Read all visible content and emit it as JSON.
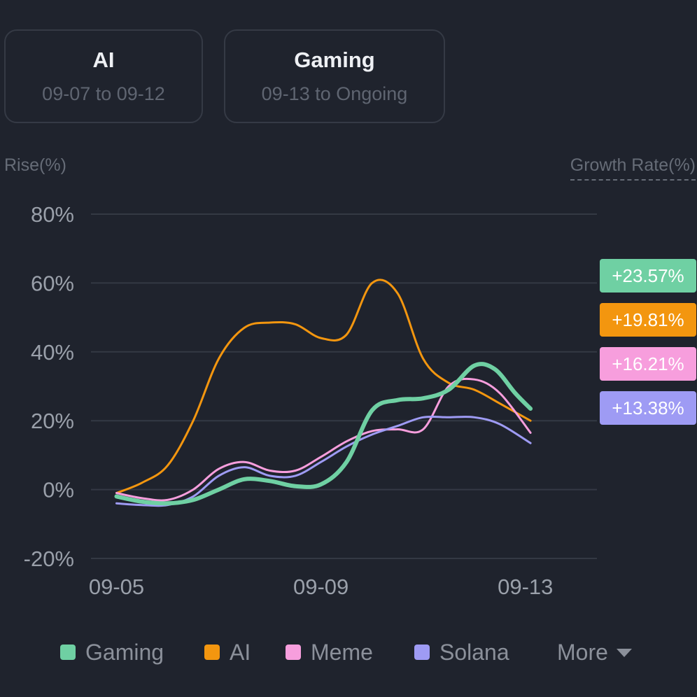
{
  "cards": [
    {
      "title": "AI",
      "range": "09-07 to 09-12"
    },
    {
      "title": "Gaming",
      "range": "09-13 to Ongoing"
    }
  ],
  "axis_left_title": "Rise(%)",
  "axis_right_title": "Growth Rate(%)",
  "colors": {
    "Gaming": "#6fd0a3",
    "AI": "#f3960f",
    "Meme": "#f79edd",
    "Solana": "#9e9bf4",
    "grid": "#343944",
    "tick": "#9aa0aa"
  },
  "badges": [
    {
      "series": "Gaming",
      "text": "+23.57%"
    },
    {
      "series": "AI",
      "text": "+19.81%"
    },
    {
      "series": "Meme",
      "text": "+16.21%"
    },
    {
      "series": "Solana",
      "text": "+13.38%"
    }
  ],
  "legend": {
    "items": [
      "Gaming",
      "AI",
      "Meme",
      "Solana"
    ],
    "more_label": "More"
  },
  "chart_data": {
    "type": "line",
    "title": "",
    "xlabel": "",
    "ylabel": "Rise(%)",
    "y2label": "Growth Rate(%)",
    "x_ticks": [
      {
        "label": "09-05",
        "x": 0
      },
      {
        "label": "09-09",
        "x": 4
      },
      {
        "label": "09-13",
        "x": 8
      }
    ],
    "y_ticks": [
      {
        "label": "80%",
        "value": 80
      },
      {
        "label": "60%",
        "value": 60
      },
      {
        "label": "40%",
        "value": 40
      },
      {
        "label": "20%",
        "value": 20
      },
      {
        "label": "0%",
        "value": 0
      },
      {
        "label": "-20%",
        "value": -20
      }
    ],
    "xlim": [
      -0.5,
      9.4
    ],
    "ylim": [
      -20,
      80
    ],
    "series": [
      {
        "name": "Gaming",
        "width": 6,
        "points": [
          [
            0,
            -2
          ],
          [
            0.5,
            -3.5
          ],
          [
            1,
            -4
          ],
          [
            1.5,
            -3
          ],
          [
            2,
            0
          ],
          [
            2.5,
            3
          ],
          [
            3,
            2.5
          ],
          [
            3.5,
            1
          ],
          [
            4,
            1.5
          ],
          [
            4.5,
            8
          ],
          [
            5,
            23
          ],
          [
            5.5,
            26
          ],
          [
            6,
            26.5
          ],
          [
            6.5,
            29
          ],
          [
            7,
            36
          ],
          [
            7.4,
            35
          ],
          [
            7.8,
            28
          ],
          [
            8.1,
            23.5
          ]
        ]
      },
      {
        "name": "AI",
        "width": 3,
        "points": [
          [
            0,
            -1
          ],
          [
            0.5,
            2
          ],
          [
            1,
            7
          ],
          [
            1.5,
            20
          ],
          [
            2,
            38
          ],
          [
            2.5,
            47
          ],
          [
            3,
            48.5
          ],
          [
            3.5,
            48
          ],
          [
            4,
            44
          ],
          [
            4.5,
            45
          ],
          [
            5,
            60
          ],
          [
            5.5,
            57
          ],
          [
            6,
            38
          ],
          [
            6.5,
            31
          ],
          [
            7,
            29
          ],
          [
            7.5,
            25
          ],
          [
            8.1,
            20
          ]
        ]
      },
      {
        "name": "Meme",
        "width": 3,
        "points": [
          [
            0,
            -1
          ],
          [
            0.5,
            -2.5
          ],
          [
            1,
            -3
          ],
          [
            1.5,
            0
          ],
          [
            2,
            6
          ],
          [
            2.5,
            8
          ],
          [
            3,
            5.5
          ],
          [
            3.5,
            5.5
          ],
          [
            4,
            9.5
          ],
          [
            4.5,
            14
          ],
          [
            5,
            17
          ],
          [
            5.5,
            17.5
          ],
          [
            6,
            17.5
          ],
          [
            6.5,
            30
          ],
          [
            7,
            32
          ],
          [
            7.5,
            28
          ],
          [
            8.1,
            16.5
          ]
        ]
      },
      {
        "name": "Solana",
        "width": 3,
        "points": [
          [
            0,
            -4
          ],
          [
            0.5,
            -4.5
          ],
          [
            1,
            -4.5
          ],
          [
            1.5,
            -2
          ],
          [
            2,
            4
          ],
          [
            2.5,
            6.5
          ],
          [
            3,
            4
          ],
          [
            3.5,
            4
          ],
          [
            4,
            8
          ],
          [
            4.5,
            12.5
          ],
          [
            5,
            16
          ],
          [
            5.5,
            18.5
          ],
          [
            6,
            21
          ],
          [
            6.5,
            21
          ],
          [
            7,
            21
          ],
          [
            7.5,
            19
          ],
          [
            8.1,
            13.5
          ]
        ]
      }
    ]
  }
}
